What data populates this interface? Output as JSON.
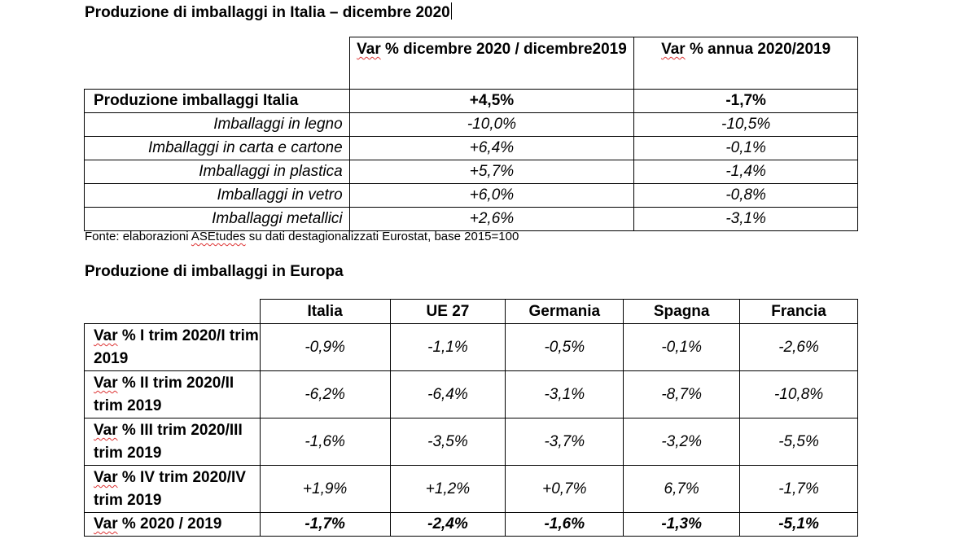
{
  "table1": {
    "title": "Produzione di imballaggi in Italia – dicembre 2020",
    "header": {
      "col1_word": "Var",
      "col1_rest": " % dicembre 2020 / dicembre2019",
      "col2_word": "Var",
      "col2_rest": " % annua 2020/2019"
    },
    "rows": [
      {
        "label": "Produzione imballaggi Italia",
        "dec": "+4,5%",
        "annual": "-1,7%"
      },
      {
        "label": "Imballaggi in legno",
        "dec": "-10,0%",
        "annual": "-10,5%"
      },
      {
        "label": "Imballaggi in carta e cartone",
        "dec": "+6,4%",
        "annual": "-0,1%"
      },
      {
        "label": "Imballaggi in plastica",
        "dec": "+5,7%",
        "annual": "-1,4%"
      },
      {
        "label": "Imballaggi in vetro",
        "dec": "+6,0%",
        "annual": "-0,8%"
      },
      {
        "label": "Imballaggi metallici",
        "dec": "+2,6%",
        "annual": "-3,1%"
      }
    ],
    "source_prefix": "Fonte: elaborazioni ",
    "source_brand": "ASEtudes",
    "source_suffix": " su dati destagionalizzati Eurostat, base 2015=100"
  },
  "table2": {
    "title": "Produzione di imballaggi in Europa",
    "columns": [
      "Italia",
      "UE 27",
      "Germania",
      "Spagna",
      "Francia"
    ],
    "rows": [
      {
        "label_word": "Var",
        "label_rest": " % I trim 2020/I trim 2019",
        "values": [
          "-0,9%",
          "-1,1%",
          "-0,5%",
          "-0,1%",
          "-2,6%"
        ]
      },
      {
        "label_word": "Var",
        "label_rest": " % II trim 2020/II trim 2019",
        "values": [
          "-6,2%",
          "-6,4%",
          "-3,1%",
          "-8,7%",
          "-10,8%"
        ]
      },
      {
        "label_word": "Var",
        "label_rest": " % III trim 2020/III trim 2019",
        "values": [
          "-1,6%",
          "-3,5%",
          "-3,7%",
          "-3,2%",
          "-5,5%"
        ]
      },
      {
        "label_word": "Var",
        "label_rest": " % IV trim 2020/IV trim 2019",
        "values": [
          "+1,9%",
          "+1,2%",
          "+0,7%",
          "6,7%",
          "-1,7%"
        ]
      },
      {
        "label_word": "Var",
        "label_rest": " % 2020 / 2019",
        "values": [
          "-1,7%",
          "-2,4%",
          "-1,6%",
          "-1,3%",
          "-5,1%"
        ]
      }
    ]
  }
}
